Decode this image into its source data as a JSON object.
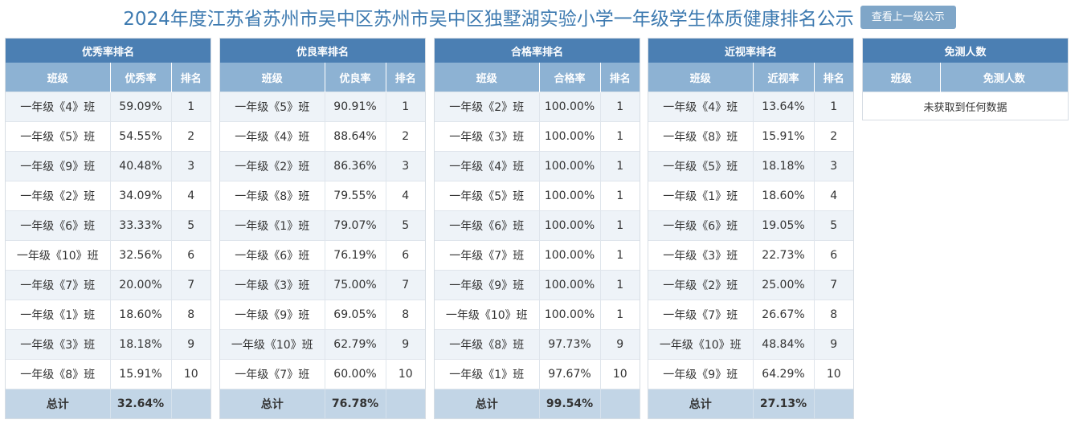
{
  "title": "2024年度江苏省苏州市吴中区苏州市吴中区独墅湖实验小学一年级学生体质健康排名公示",
  "up_button": "查看上一级公示",
  "panels": [
    {
      "title": "优秀率排名",
      "headers": [
        "班级",
        "优秀率",
        "排名"
      ],
      "rows": [
        [
          "一年级《4》班",
          "59.09%",
          "1"
        ],
        [
          "一年级《5》班",
          "54.55%",
          "2"
        ],
        [
          "一年级《9》班",
          "40.48%",
          "3"
        ],
        [
          "一年级《2》班",
          "34.09%",
          "4"
        ],
        [
          "一年级《6》班",
          "33.33%",
          "5"
        ],
        [
          "一年级《10》班",
          "32.56%",
          "6"
        ],
        [
          "一年级《7》班",
          "20.00%",
          "7"
        ],
        [
          "一年级《1》班",
          "18.60%",
          "8"
        ],
        [
          "一年级《3》班",
          "18.18%",
          "9"
        ],
        [
          "一年级《8》班",
          "15.91%",
          "10"
        ]
      ],
      "total": [
        "总计",
        "32.64%",
        ""
      ]
    },
    {
      "title": "优良率排名",
      "headers": [
        "班级",
        "优良率",
        "排名"
      ],
      "rows": [
        [
          "一年级《5》班",
          "90.91%",
          "1"
        ],
        [
          "一年级《4》班",
          "88.64%",
          "2"
        ],
        [
          "一年级《2》班",
          "86.36%",
          "3"
        ],
        [
          "一年级《8》班",
          "79.55%",
          "4"
        ],
        [
          "一年级《1》班",
          "79.07%",
          "5"
        ],
        [
          "一年级《6》班",
          "76.19%",
          "6"
        ],
        [
          "一年级《3》班",
          "75.00%",
          "7"
        ],
        [
          "一年级《9》班",
          "69.05%",
          "8"
        ],
        [
          "一年级《10》班",
          "62.79%",
          "9"
        ],
        [
          "一年级《7》班",
          "60.00%",
          "10"
        ]
      ],
      "total": [
        "总计",
        "76.78%",
        ""
      ]
    },
    {
      "title": "合格率排名",
      "headers": [
        "班级",
        "合格率",
        "排名"
      ],
      "rows": [
        [
          "一年级《2》班",
          "100.00%",
          "1"
        ],
        [
          "一年级《3》班",
          "100.00%",
          "1"
        ],
        [
          "一年级《4》班",
          "100.00%",
          "1"
        ],
        [
          "一年级《5》班",
          "100.00%",
          "1"
        ],
        [
          "一年级《6》班",
          "100.00%",
          "1"
        ],
        [
          "一年级《7》班",
          "100.00%",
          "1"
        ],
        [
          "一年级《9》班",
          "100.00%",
          "1"
        ],
        [
          "一年级《10》班",
          "100.00%",
          "1"
        ],
        [
          "一年级《8》班",
          "97.73%",
          "9"
        ],
        [
          "一年级《1》班",
          "97.67%",
          "10"
        ]
      ],
      "total": [
        "总计",
        "99.54%",
        ""
      ]
    },
    {
      "title": "近视率排名",
      "headers": [
        "班级",
        "近视率",
        "排名"
      ],
      "rows": [
        [
          "一年级《4》班",
          "13.64%",
          "1"
        ],
        [
          "一年级《8》班",
          "15.91%",
          "2"
        ],
        [
          "一年级《5》班",
          "18.18%",
          "3"
        ],
        [
          "一年级《1》班",
          "18.60%",
          "4"
        ],
        [
          "一年级《6》班",
          "19.05%",
          "5"
        ],
        [
          "一年级《3》班",
          "22.73%",
          "6"
        ],
        [
          "一年级《2》班",
          "25.00%",
          "7"
        ],
        [
          "一年级《7》班",
          "26.67%",
          "8"
        ],
        [
          "一年级《10》班",
          "48.84%",
          "9"
        ],
        [
          "一年级《9》班",
          "64.29%",
          "10"
        ]
      ],
      "total": [
        "总计",
        "27.13%",
        ""
      ]
    }
  ],
  "exempt_panel": {
    "title": "免测人数",
    "headers": [
      "班级",
      "免测人数"
    ],
    "empty_text": "未获取到任何数据"
  }
}
